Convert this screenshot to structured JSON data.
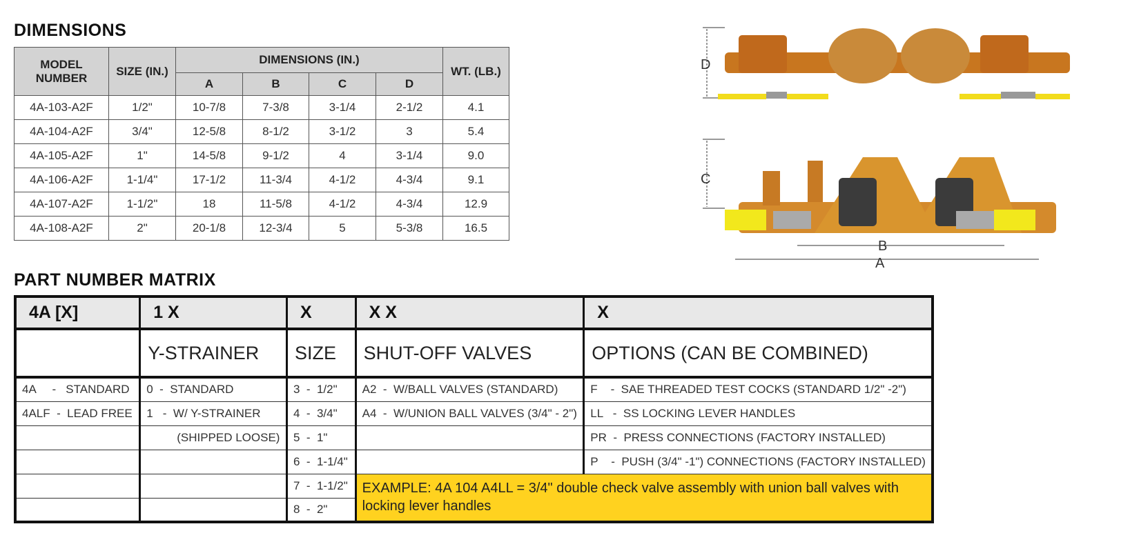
{
  "dimensions": {
    "title": "DIMENSIONS",
    "headers": {
      "model": "MODEL NUMBER",
      "size": "SIZE (IN.)",
      "dims": "DIMENSIONS (IN.)",
      "a": "A",
      "b": "B",
      "c": "C",
      "d": "D",
      "wt": "WT. (LB.)"
    },
    "rows": [
      [
        "4A-103-A2F",
        "1/2\"",
        "10-7/8",
        "7-3/8",
        "3-1/4",
        "2-1/2",
        "4.1"
      ],
      [
        "4A-104-A2F",
        "3/4\"",
        "12-5/8",
        "8-1/2",
        "3-1/2",
        "3",
        "5.4"
      ],
      [
        "4A-105-A2F",
        "1\"",
        "14-5/8",
        "9-1/2",
        "4",
        "3-1/4",
        "9.0"
      ],
      [
        "4A-106-A2F",
        "1-1/4\"",
        "17-1/2",
        "11-3/4",
        "4-1/2",
        "4-3/4",
        "9.1"
      ],
      [
        "4A-107-A2F",
        "1-1/2\"",
        "18",
        "11-5/8",
        "4-1/2",
        "4-3/4",
        "12.9"
      ],
      [
        "4A-108-A2F",
        "2\"",
        "20-1/8",
        "12-3/4",
        "5",
        "5-3/8",
        "16.5"
      ]
    ]
  },
  "diagram": {
    "labels": {
      "a": "A",
      "b": "B",
      "c": "C",
      "d": "D"
    }
  },
  "matrix": {
    "title": "PART NUMBER MATRIX",
    "codes": [
      "4A [X]",
      "1 X",
      "X",
      "X X",
      "X"
    ],
    "labels": [
      "",
      "Y-STRAINER",
      "SIZE",
      "SHUT-OFF VALVES",
      "OPTIONS (CAN BE COMBINED)"
    ],
    "rows": [
      [
        "4A     -   STANDARD",
        "0  -  STANDARD",
        "3  -  1/2\"",
        "A2  -  W/BALL VALVES (STANDARD)",
        "F    -  SAE THREADED TEST COCKS (STANDARD 1/2\" -2\")"
      ],
      [
        "4ALF  -  LEAD FREE",
        "1   -  W/ Y-STRAINER",
        "4  -  3/4\"",
        "A4  -  W/UNION BALL VALVES (3/4\" - 2\")",
        "LL   -  SS LOCKING LEVER HANDLES"
      ],
      [
        "",
        "(SHIPPED LOOSE)",
        "5  -  1\"",
        "",
        "PR  -  PRESS CONNECTIONS (FACTORY INSTALLED)"
      ],
      [
        "",
        "",
        "6  -  1-1/4\"",
        "",
        "P    -  PUSH (3/4\" -1\") CONNECTIONS (FACTORY INSTALLED)"
      ],
      [
        "",
        "",
        "7  -  1-1/2\""
      ],
      [
        "",
        "",
        "8  -  2\""
      ]
    ],
    "example": "EXAMPLE: 4A 104 A4LL = 3/4\" double check valve assembly with union ball valves with locking lever handles",
    "example_color": "#ffd21f"
  }
}
